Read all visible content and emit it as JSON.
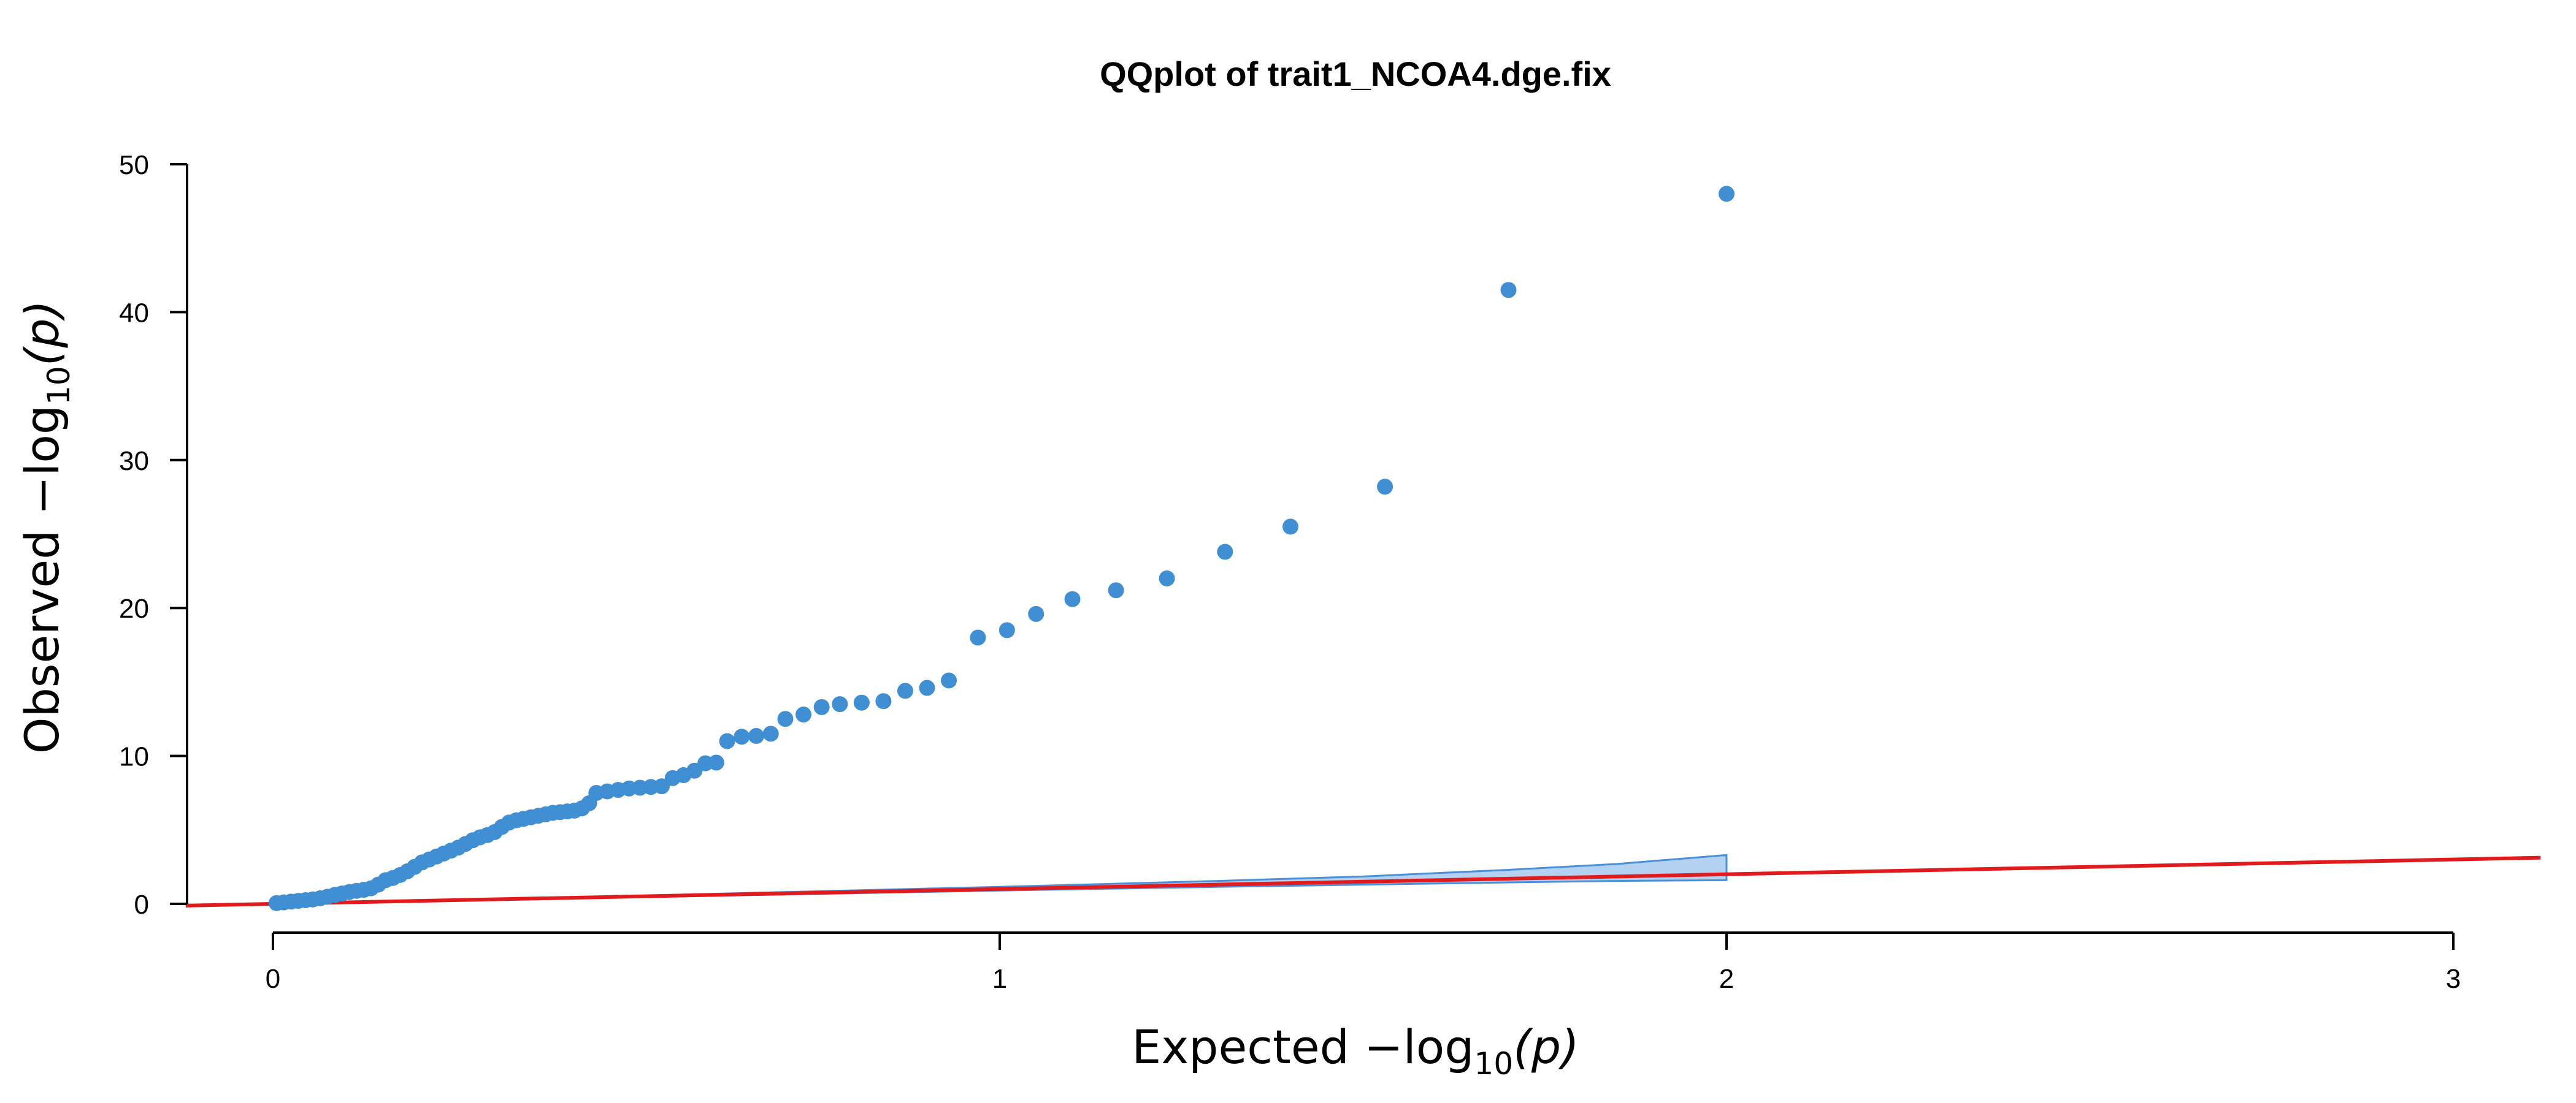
{
  "chart_data": {
    "type": "scatter",
    "title": "QQplot of trait1_NCOA4.dge.fix",
    "xlabel": {
      "prefix": "Expected  −log",
      "sub": "10",
      "suffix": "(p)"
    },
    "ylabel": {
      "prefix": "Observed  −log",
      "sub": "10",
      "suffix": "(p)"
    },
    "xlim": [
      0,
      3
    ],
    "ylim": [
      0,
      50
    ],
    "x_ticks": [
      "0",
      "1",
      "2",
      "3"
    ],
    "y_ticks": [
      "0",
      "10",
      "20",
      "30",
      "40",
      "50"
    ],
    "grid": false,
    "legend": "none",
    "colors": {
      "points": "#3f8fd2",
      "band_fill": "#b3d1f0",
      "band_stroke": "#4a90d9",
      "reference_line": "#e31a1c"
    },
    "reference_line": {
      "slope": 1,
      "intercept": 0
    },
    "confidence_band": [
      {
        "x": 0.0,
        "lo": 0.0,
        "hi": 0.0
      },
      {
        "x": 0.5,
        "lo": 0.45,
        "hi": 0.55
      },
      {
        "x": 1.0,
        "lo": 0.9,
        "hi": 1.15
      },
      {
        "x": 1.3,
        "lo": 1.15,
        "hi": 1.55
      },
      {
        "x": 1.5,
        "lo": 1.3,
        "hi": 1.85
      },
      {
        "x": 1.7,
        "lo": 1.45,
        "hi": 2.3
      },
      {
        "x": 1.85,
        "lo": 1.55,
        "hi": 2.7
      },
      {
        "x": 2.0,
        "lo": 1.6,
        "hi": 3.3
      }
    ],
    "points": [
      {
        "x": 0.005,
        "y": 0.05
      },
      {
        "x": 0.015,
        "y": 0.1
      },
      {
        "x": 0.025,
        "y": 0.15
      },
      {
        "x": 0.035,
        "y": 0.2
      },
      {
        "x": 0.045,
        "y": 0.25
      },
      {
        "x": 0.055,
        "y": 0.3
      },
      {
        "x": 0.065,
        "y": 0.38
      },
      {
        "x": 0.075,
        "y": 0.48
      },
      {
        "x": 0.085,
        "y": 0.6
      },
      {
        "x": 0.095,
        "y": 0.7
      },
      {
        "x": 0.105,
        "y": 0.8
      },
      {
        "x": 0.115,
        "y": 0.88
      },
      {
        "x": 0.125,
        "y": 0.95
      },
      {
        "x": 0.135,
        "y": 1.05
      },
      {
        "x": 0.145,
        "y": 1.3
      },
      {
        "x": 0.155,
        "y": 1.6
      },
      {
        "x": 0.165,
        "y": 1.75
      },
      {
        "x": 0.175,
        "y": 1.95
      },
      {
        "x": 0.185,
        "y": 2.2
      },
      {
        "x": 0.195,
        "y": 2.5
      },
      {
        "x": 0.205,
        "y": 2.8
      },
      {
        "x": 0.215,
        "y": 3.0
      },
      {
        "x": 0.225,
        "y": 3.2
      },
      {
        "x": 0.235,
        "y": 3.4
      },
      {
        "x": 0.245,
        "y": 3.6
      },
      {
        "x": 0.255,
        "y": 3.8
      },
      {
        "x": 0.265,
        "y": 4.05
      },
      {
        "x": 0.275,
        "y": 4.3
      },
      {
        "x": 0.285,
        "y": 4.5
      },
      {
        "x": 0.295,
        "y": 4.65
      },
      {
        "x": 0.305,
        "y": 4.85
      },
      {
        "x": 0.315,
        "y": 5.2
      },
      {
        "x": 0.325,
        "y": 5.5
      },
      {
        "x": 0.335,
        "y": 5.65
      },
      {
        "x": 0.345,
        "y": 5.75
      },
      {
        "x": 0.355,
        "y": 5.85
      },
      {
        "x": 0.365,
        "y": 5.95
      },
      {
        "x": 0.375,
        "y": 6.05
      },
      {
        "x": 0.385,
        "y": 6.15
      },
      {
        "x": 0.395,
        "y": 6.2
      },
      {
        "x": 0.405,
        "y": 6.25
      },
      {
        "x": 0.415,
        "y": 6.3
      },
      {
        "x": 0.425,
        "y": 6.45
      },
      {
        "x": 0.435,
        "y": 6.8
      },
      {
        "x": 0.445,
        "y": 7.5
      },
      {
        "x": 0.46,
        "y": 7.6
      },
      {
        "x": 0.475,
        "y": 7.7
      },
      {
        "x": 0.49,
        "y": 7.8
      },
      {
        "x": 0.505,
        "y": 7.85
      },
      {
        "x": 0.52,
        "y": 7.9
      },
      {
        "x": 0.535,
        "y": 7.95
      },
      {
        "x": 0.55,
        "y": 8.5
      },
      {
        "x": 0.565,
        "y": 8.7
      },
      {
        "x": 0.58,
        "y": 9.0
      },
      {
        "x": 0.595,
        "y": 9.5
      },
      {
        "x": 0.61,
        "y": 9.55
      },
      {
        "x": 0.625,
        "y": 11.0
      },
      {
        "x": 0.645,
        "y": 11.3
      },
      {
        "x": 0.665,
        "y": 11.35
      },
      {
        "x": 0.685,
        "y": 11.5
      },
      {
        "x": 0.705,
        "y": 12.5
      },
      {
        "x": 0.73,
        "y": 12.8
      },
      {
        "x": 0.755,
        "y": 13.3
      },
      {
        "x": 0.78,
        "y": 13.5
      },
      {
        "x": 0.81,
        "y": 13.6
      },
      {
        "x": 0.84,
        "y": 13.7
      },
      {
        "x": 0.87,
        "y": 14.4
      },
      {
        "x": 0.9,
        "y": 14.6
      },
      {
        "x": 0.93,
        "y": 15.1
      },
      {
        "x": 0.97,
        "y": 18.0
      },
      {
        "x": 1.01,
        "y": 18.5
      },
      {
        "x": 1.05,
        "y": 19.6
      },
      {
        "x": 1.1,
        "y": 20.6
      },
      {
        "x": 1.16,
        "y": 21.2
      },
      {
        "x": 1.23,
        "y": 22.0
      },
      {
        "x": 1.31,
        "y": 23.8
      },
      {
        "x": 1.4,
        "y": 25.5
      },
      {
        "x": 1.53,
        "y": 28.2
      },
      {
        "x": 1.7,
        "y": 41.5
      },
      {
        "x": 2.0,
        "y": 48.0
      }
    ]
  }
}
